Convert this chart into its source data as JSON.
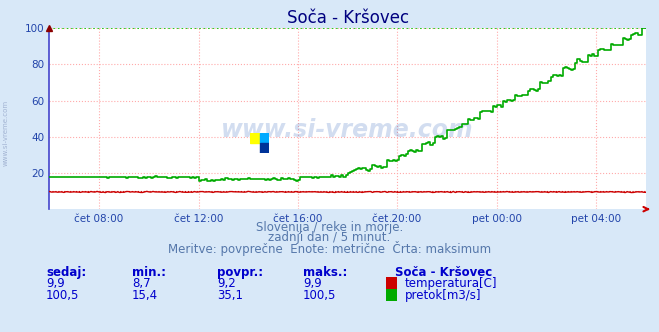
{
  "title": "Soča - Kršovec",
  "background_color": "#d8e8f8",
  "plot_bg_color": "#ffffff",
  "grid_color": "#ffaaaa",
  "x_labels": [
    "čet 08:00",
    "čet 12:00",
    "čet 16:00",
    "čet 20:00",
    "pet 00:00",
    "pet 04:00"
  ],
  "x_ticks_norm": [
    0.083,
    0.25,
    0.417,
    0.583,
    0.75,
    0.917
  ],
  "y_min": 0,
  "y_max": 100,
  "y_ticks": [
    20,
    40,
    60,
    80,
    100
  ],
  "title_color": "#000080",
  "title_fontsize": 12,
  "axis_label_color": "#2244aa",
  "watermark_text": "www.si-vreme.com",
  "watermark_color": "#3366bb",
  "watermark_alpha": 0.22,
  "subtitle_lines": [
    "Slovenija / reke in morje.",
    "zadnji dan / 5 minut.",
    "Meritve: povprečne  Enote: metrične  Črta: maksimum"
  ],
  "subtitle_color": "#5577aa",
  "subtitle_fontsize": 8.5,
  "legend_title": "Soča - Kršovec",
  "legend_items": [
    {
      "label": "temperatura[C]",
      "color": "#cc0000"
    },
    {
      "label": "pretok[m3/s]",
      "color": "#00aa00"
    }
  ],
  "stats_headers": [
    "sedaj:",
    "min.:",
    "povpr.:",
    "maks.:"
  ],
  "stats_row1": [
    "9,9",
    "8,7",
    "9,2",
    "9,9"
  ],
  "stats_row2": [
    "100,5",
    "15,4",
    "35,1",
    "100,5"
  ],
  "stats_color": "#0000cc",
  "stats_fontsize": 8.5,
  "temp_color": "#cc0000",
  "flow_color": "#00aa00",
  "max_flow_line_color": "#00cc00",
  "max_temp_line_color": "#cc0000",
  "left_spine_color": "#4444cc",
  "bottom_spine_color": "#cc0000",
  "arrow_color": "#cc0000",
  "watermark_icon_colors": [
    "#ffff00",
    "#00aaff",
    "#003399"
  ],
  "sidebar_text": "www.si-vreme.com",
  "sidebar_color": "#99aacc"
}
